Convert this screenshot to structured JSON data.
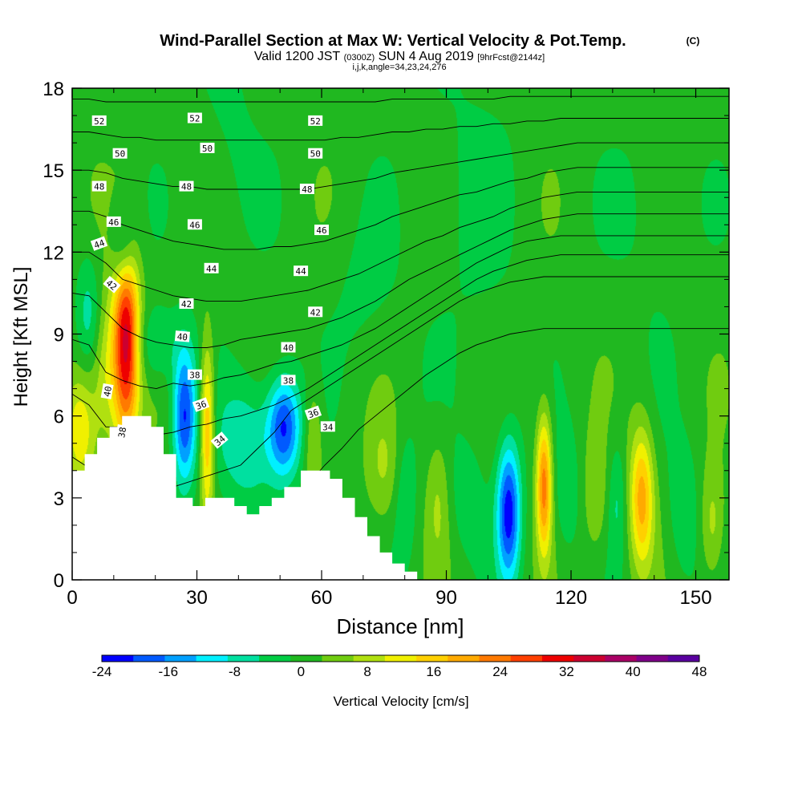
{
  "chart_data": {
    "type": "heatmap",
    "title": "Wind-Parallel Section at Max W: Vertical Velocity & Pot.Temp.",
    "title_mark": "(C)",
    "subtitle": {
      "valid": "Valid 1200 JST",
      "utc": "(0300Z)",
      "date": "SUN 4 Aug 2019",
      "forecast": "[9hrFcst@2144z]"
    },
    "subtitle2": "i,j,k,angle=34,23,24,276",
    "xlabel": "Distance [nm]",
    "ylabel": "Height [Kft MSL]",
    "xlim": [
      0,
      158
    ],
    "ylim": [
      0,
      18
    ],
    "x_ticks": [
      0,
      30,
      60,
      90,
      120,
      150
    ],
    "y_ticks": [
      0,
      3,
      6,
      9,
      12,
      15,
      18
    ],
    "colorbar": {
      "label": "Vertical Velocity [cm/s]",
      "ticks": [
        -24,
        -16,
        -8,
        0,
        8,
        16,
        24,
        32,
        40,
        48
      ],
      "levels": [
        -24,
        -20,
        -16,
        -12,
        -8,
        -4,
        0,
        4,
        8,
        12,
        16,
        20,
        24,
        28,
        32,
        36,
        40,
        44,
        48
      ],
      "colors": [
        "#0000ff",
        "#005aff",
        "#00a0ff",
        "#00f0ff",
        "#00e0a0",
        "#00cc44",
        "#20b820",
        "#70cc10",
        "#b0e010",
        "#f0f000",
        "#ffd000",
        "#ffaa00",
        "#ff7a00",
        "#ff4000",
        "#ee0000",
        "#cc0030",
        "#aa0066",
        "#80008a",
        "#5a00a0"
      ]
    },
    "terrain": [
      [
        0,
        4
      ],
      [
        3,
        4
      ],
      [
        3,
        4.6
      ],
      [
        6,
        4.6
      ],
      [
        6,
        5.2
      ],
      [
        9,
        5.2
      ],
      [
        9,
        5.6
      ],
      [
        12,
        5.6
      ],
      [
        12,
        6
      ],
      [
        19,
        6
      ],
      [
        19,
        5.6
      ],
      [
        22,
        5.6
      ],
      [
        22,
        4.6
      ],
      [
        25,
        4.6
      ],
      [
        25,
        3
      ],
      [
        29,
        3
      ],
      [
        29,
        2.7
      ],
      [
        32,
        2.7
      ],
      [
        32,
        3
      ],
      [
        39,
        3
      ],
      [
        39,
        2.7
      ],
      [
        42,
        2.7
      ],
      [
        42,
        2.4
      ],
      [
        45,
        2.4
      ],
      [
        45,
        2.7
      ],
      [
        48,
        2.7
      ],
      [
        48,
        3
      ],
      [
        51,
        3
      ],
      [
        51,
        3.4
      ],
      [
        55,
        3.4
      ],
      [
        55,
        4
      ],
      [
        62,
        4
      ],
      [
        62,
        3.7
      ],
      [
        65,
        3.7
      ],
      [
        65,
        3
      ],
      [
        68,
        3
      ],
      [
        68,
        2.3
      ],
      [
        71,
        2.3
      ],
      [
        71,
        1.6
      ],
      [
        74,
        1.6
      ],
      [
        74,
        1
      ],
      [
        77,
        1
      ],
      [
        77,
        0.6
      ],
      [
        80,
        0.6
      ],
      [
        80,
        0.3
      ],
      [
        83,
        0.3
      ],
      [
        83,
        0
      ],
      [
        158,
        0
      ]
    ],
    "w_field": {
      "background": "#22bb22",
      "features": [
        {
          "x": 13,
          "y": 8.8,
          "sx": 2.2,
          "sy": 2.6,
          "w": 36
        },
        {
          "x": 12.5,
          "y": 12.2,
          "sx": 2.0,
          "sy": 1.2,
          "w": -14
        },
        {
          "x": 8,
          "y": 7.5,
          "sx": 2.5,
          "sy": 2.0,
          "w": 10
        },
        {
          "x": 2,
          "y": 5.5,
          "sx": 2.5,
          "sy": 1.5,
          "w": 14
        },
        {
          "x": 4,
          "y": 9.8,
          "sx": 2.0,
          "sy": 1.5,
          "w": -8
        },
        {
          "x": 20,
          "y": 8.6,
          "sx": 4.0,
          "sy": 1.0,
          "w": -7
        },
        {
          "x": 27,
          "y": 6.0,
          "sx": 2.0,
          "sy": 1.8,
          "w": -22
        },
        {
          "x": 32.5,
          "y": 5.5,
          "sx": 1.2,
          "sy": 2.2,
          "w": 20
        },
        {
          "x": 42,
          "y": 5.0,
          "sx": 5.0,
          "sy": 1.6,
          "w": -10
        },
        {
          "x": 51,
          "y": 5.6,
          "sx": 2.8,
          "sy": 1.3,
          "w": -22
        },
        {
          "x": 58,
          "y": 5.0,
          "sx": 1.5,
          "sy": 1.5,
          "w": 8
        },
        {
          "x": 75,
          "y": 4.0,
          "sx": 3.0,
          "sy": 1.5,
          "w": 6
        },
        {
          "x": 80,
          "y": 3.0,
          "sx": 2.0,
          "sy": 1.8,
          "w": -6
        },
        {
          "x": 88,
          "y": 3.0,
          "sx": 2.0,
          "sy": 1.8,
          "w": 6
        },
        {
          "x": 95,
          "y": 3.0,
          "sx": 3.0,
          "sy": 1.5,
          "w": -5
        },
        {
          "x": 105,
          "y": 2.5,
          "sx": 2.0,
          "sy": 1.8,
          "w": -24
        },
        {
          "x": 113.5,
          "y": 3.5,
          "sx": 1.3,
          "sy": 1.8,
          "w": 24
        },
        {
          "x": 119,
          "y": 3.2,
          "sx": 2.0,
          "sy": 1.6,
          "w": -6
        },
        {
          "x": 126,
          "y": 3.0,
          "sx": 2.0,
          "sy": 1.6,
          "w": 6
        },
        {
          "x": 131,
          "y": 3.0,
          "sx": 1.5,
          "sy": 1.6,
          "w": -6
        },
        {
          "x": 137,
          "y": 3.0,
          "sx": 2.0,
          "sy": 1.8,
          "w": 20
        },
        {
          "x": 147,
          "y": 2.5,
          "sx": 2.5,
          "sy": 1.8,
          "w": -6
        },
        {
          "x": 154,
          "y": 2.0,
          "sx": 2.0,
          "sy": 1.5,
          "w": 8
        },
        {
          "x": 38,
          "y": 16.0,
          "sx": 5.0,
          "sy": 3.0,
          "w": -3
        },
        {
          "x": 95,
          "y": 14.0,
          "sx": 8.0,
          "sy": 4.0,
          "w": -3
        },
        {
          "x": 140,
          "y": 13.5,
          "sx": 6.0,
          "sy": 3.0,
          "w": -3
        },
        {
          "x": 70,
          "y": 10.5,
          "sx": 6.0,
          "sy": 2.0,
          "w": -3
        }
      ]
    },
    "theta": {
      "levels": [
        34,
        35,
        36,
        37,
        38,
        39,
        40,
        41,
        42,
        43,
        44,
        45,
        46,
        47,
        48,
        49,
        50,
        51,
        52,
        53
      ],
      "heights": [
        [
          0,
          2,
          4.5,
          6.8,
          8.8,
          10.5,
          12.0,
          13.5,
          15.0,
          16.4,
          17.6
        ],
        [
          0,
          1.6,
          4.1,
          6.4,
          8.6,
          10.4,
          12.0,
          13.5,
          15.0,
          16.4,
          17.6
        ],
        [
          0,
          1.9,
          3.2,
          5.6,
          7.6,
          9.8,
          11.6,
          13.3,
          14.9,
          16.3,
          17.5
        ],
        [
          0,
          1.7,
          3.6,
          5.6,
          7.3,
          9.2,
          11.0,
          13.0,
          14.7,
          16.2,
          17.5
        ],
        [
          0,
          1.5,
          3.0,
          5.2,
          7.1,
          8.9,
          10.8,
          12.8,
          14.6,
          16.2,
          17.5
        ],
        [
          0,
          1.5,
          3.2,
          5.3,
          7.0,
          8.7,
          10.6,
          12.6,
          14.5,
          16.1,
          17.5
        ],
        [
          0,
          1.5,
          3.4,
          5.4,
          7.2,
          8.6,
          10.4,
          12.4,
          14.4,
          16.1,
          17.5
        ],
        [
          0,
          1.5,
          3.6,
          5.6,
          7.1,
          8.5,
          10.3,
          12.3,
          14.4,
          16.1,
          17.5
        ],
        [
          0,
          1.4,
          3.8,
          5.7,
          7.2,
          8.5,
          10.2,
          12.2,
          14.3,
          16.1,
          17.5
        ],
        [
          0,
          1.6,
          4.0,
          5.9,
          7.4,
          8.6,
          10.2,
          12.1,
          14.3,
          16.1,
          17.5
        ],
        [
          0,
          1.8,
          4.2,
          6.0,
          7.5,
          8.8,
          10.2,
          12.1,
          14.3,
          16.1,
          17.5
        ],
        [
          0,
          2.2,
          4.8,
          6.2,
          7.7,
          8.9,
          10.3,
          12.1,
          14.3,
          16.1,
          17.5
        ],
        [
          0,
          2.7,
          5.4,
          6.4,
          7.9,
          9.0,
          10.4,
          12.2,
          14.3,
          16.1,
          17.5
        ],
        [
          0,
          3.1,
          6.2,
          6.7,
          8.0,
          9.1,
          10.5,
          12.2,
          14.3,
          16.1,
          17.5
        ],
        [
          0,
          3.5,
          6.6,
          7.0,
          8.2,
          9.2,
          10.6,
          12.3,
          14.3,
          16.1,
          17.5
        ],
        [
          0,
          4.2,
          7.0,
          7.4,
          8.4,
          9.4,
          10.8,
          12.4,
          14.4,
          16.1,
          17.5
        ],
        [
          0,
          4.8,
          7.4,
          7.8,
          8.6,
          9.6,
          11.0,
          12.6,
          14.5,
          16.2,
          17.5
        ],
        [
          0,
          5.5,
          7.8,
          8.2,
          8.9,
          9.9,
          11.2,
          12.8,
          14.6,
          16.2,
          17.5
        ],
        [
          0,
          6.0,
          8.2,
          8.6,
          9.2,
          10.2,
          11.5,
          13.0,
          14.7,
          16.3,
          17.5
        ],
        [
          0,
          6.5,
          8.6,
          9.0,
          9.6,
          10.6,
          11.8,
          13.3,
          14.9,
          16.4,
          17.6
        ],
        [
          0,
          7.0,
          9.0,
          9.4,
          10.0,
          11.0,
          12.1,
          13.5,
          15.0,
          16.4,
          17.6
        ],
        [
          0,
          7.5,
          9.4,
          9.8,
          10.4,
          11.3,
          12.4,
          13.7,
          15.1,
          16.5,
          17.6
        ],
        [
          0,
          7.9,
          9.8,
          10.2,
          10.8,
          11.6,
          12.6,
          13.9,
          15.2,
          16.5,
          17.6
        ],
        [
          0,
          8.3,
          10.2,
          10.6,
          11.2,
          11.9,
          12.9,
          14.1,
          15.3,
          16.6,
          17.6
        ],
        [
          0,
          8.6,
          10.5,
          11.0,
          11.6,
          12.2,
          13.1,
          14.2,
          15.4,
          16.6,
          17.6
        ],
        [
          0,
          8.8,
          10.7,
          11.3,
          11.9,
          12.5,
          13.3,
          14.4,
          15.5,
          16.7,
          17.6
        ],
        [
          0,
          9.0,
          10.9,
          11.5,
          12.2,
          12.8,
          13.6,
          14.6,
          15.6,
          16.7,
          17.7
        ],
        [
          0,
          9.1,
          11.0,
          11.7,
          12.4,
          13.0,
          13.8,
          14.7,
          15.7,
          16.8,
          17.7
        ],
        [
          0,
          9.2,
          11.1,
          11.8,
          12.5,
          13.2,
          14.0,
          14.9,
          15.8,
          16.8,
          17.7
        ],
        [
          0,
          9.2,
          11.1,
          11.9,
          12.6,
          13.3,
          14.1,
          15.0,
          15.9,
          16.9,
          17.7
        ],
        [
          0,
          9.2,
          11.1,
          11.9,
          12.6,
          13.4,
          14.2,
          15.1,
          16.0,
          16.9,
          17.7
        ],
        [
          0,
          9.2,
          11.1,
          11.9,
          12.6,
          13.4,
          14.2,
          15.1,
          16.0,
          16.9,
          17.7
        ],
        [
          0,
          9.2,
          11.1,
          11.9,
          12.6,
          13.4,
          14.2,
          15.1,
          16.0,
          16.9,
          17.7
        ],
        [
          0,
          9.2,
          11.1,
          11.9,
          12.6,
          13.4,
          14.2,
          15.1,
          16.0,
          16.9,
          17.7
        ],
        [
          0,
          9.2,
          11.1,
          11.9,
          12.6,
          13.4,
          14.2,
          15.1,
          16.0,
          16.9,
          17.7
        ],
        [
          0,
          9.2,
          11.1,
          11.9,
          12.6,
          13.4,
          14.2,
          15.1,
          16.0,
          16.9,
          17.7
        ],
        [
          0,
          9.2,
          11.1,
          11.9,
          12.6,
          13.4,
          14.2,
          15.1,
          16.0,
          16.9,
          17.7
        ],
        [
          0,
          9.2,
          11.1,
          11.9,
          12.6,
          13.4,
          14.2,
          15.1,
          16.0,
          16.9,
          17.7
        ],
        [
          0,
          9.2,
          11.1,
          11.9,
          12.6,
          13.4,
          14.2,
          15.1,
          16.0,
          16.9,
          17.7
        ],
        [
          0,
          9.2,
          11.1,
          11.9,
          12.6,
          13.4,
          14.2,
          15.1,
          16.0,
          16.9,
          17.7
        ]
      ]
    },
    "contour_labels": [
      {
        "text": "52",
        "x": 6.5,
        "y": 16.8
      },
      {
        "text": "50",
        "x": 11.5,
        "y": 15.6
      },
      {
        "text": "48",
        "x": 6.5,
        "y": 14.4
      },
      {
        "text": "46",
        "x": 10,
        "y": 13.1
      },
      {
        "text": "44",
        "x": 6.5,
        "y": 12.3,
        "rot": -20
      },
      {
        "text": "42",
        "x": 9.5,
        "y": 10.8,
        "rot": 40
      },
      {
        "text": "40",
        "x": 8.5,
        "y": 6.9,
        "rot": -80
      },
      {
        "text": "38",
        "x": 12,
        "y": 5.4,
        "rot": -80
      },
      {
        "text": "52",
        "x": 29.5,
        "y": 16.9
      },
      {
        "text": "50",
        "x": 32.5,
        "y": 15.8
      },
      {
        "text": "48",
        "x": 27.5,
        "y": 14.4
      },
      {
        "text": "46",
        "x": 29.5,
        "y": 13.0
      },
      {
        "text": "44",
        "x": 33.5,
        "y": 11.4
      },
      {
        "text": "42",
        "x": 27.5,
        "y": 10.1
      },
      {
        "text": "40",
        "x": 26.5,
        "y": 8.9,
        "rot": 5
      },
      {
        "text": "38",
        "x": 29.5,
        "y": 7.5
      },
      {
        "text": "36",
        "x": 31,
        "y": 6.4,
        "rot": -20
      },
      {
        "text": "34",
        "x": 35.5,
        "y": 5.1,
        "rot": -40
      },
      {
        "text": "52",
        "x": 58.5,
        "y": 16.8
      },
      {
        "text": "50",
        "x": 58.5,
        "y": 15.6
      },
      {
        "text": "48",
        "x": 56.5,
        "y": 14.3
      },
      {
        "text": "46",
        "x": 60,
        "y": 12.8
      },
      {
        "text": "44",
        "x": 55,
        "y": 11.3
      },
      {
        "text": "42",
        "x": 58.5,
        "y": 9.8
      },
      {
        "text": "40",
        "x": 52,
        "y": 8.5
      },
      {
        "text": "38",
        "x": 52,
        "y": 7.3
      },
      {
        "text": "36",
        "x": 58,
        "y": 6.1,
        "rot": -20
      },
      {
        "text": "34",
        "x": 61.5,
        "y": 5.6
      }
    ]
  }
}
